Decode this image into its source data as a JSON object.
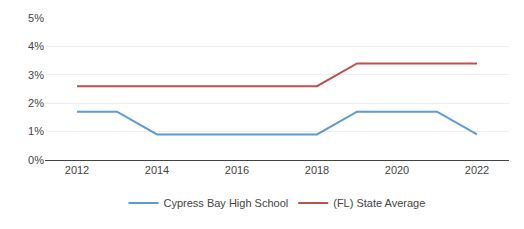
{
  "chart_data": {
    "type": "line",
    "x": [
      2012,
      2013,
      2014,
      2015,
      2016,
      2017,
      2018,
      2019,
      2020,
      2021,
      2022
    ],
    "series": [
      {
        "name": "Cypress Bay High School",
        "color": "#5b9bd5",
        "values": [
          0.017,
          0.017,
          0.009,
          0.009,
          0.009,
          0.009,
          0.009,
          0.017,
          0.017,
          0.017,
          0.009
        ]
      },
      {
        "name": "(FL) State Average",
        "color": "#c0504d",
        "values": [
          0.026,
          0.026,
          0.026,
          0.026,
          0.026,
          0.026,
          0.026,
          0.034,
          0.034,
          0.034,
          0.034
        ]
      }
    ],
    "xlim": [
      2011.2,
      2022.8
    ],
    "xticks": [
      2012,
      2014,
      2016,
      2018,
      2020,
      2022
    ],
    "ylim": [
      0,
      0.05
    ],
    "yticks": [
      {
        "value": 0,
        "label": "0%"
      },
      {
        "value": 0.01,
        "label": "1%"
      },
      {
        "value": 0.02,
        "label": "2%"
      },
      {
        "value": 0.03,
        "label": "3%"
      },
      {
        "value": 0.04,
        "label": "4%"
      },
      {
        "value": 0.05,
        "label": "5%"
      }
    ],
    "grid": "y",
    "legend": "bottom"
  }
}
